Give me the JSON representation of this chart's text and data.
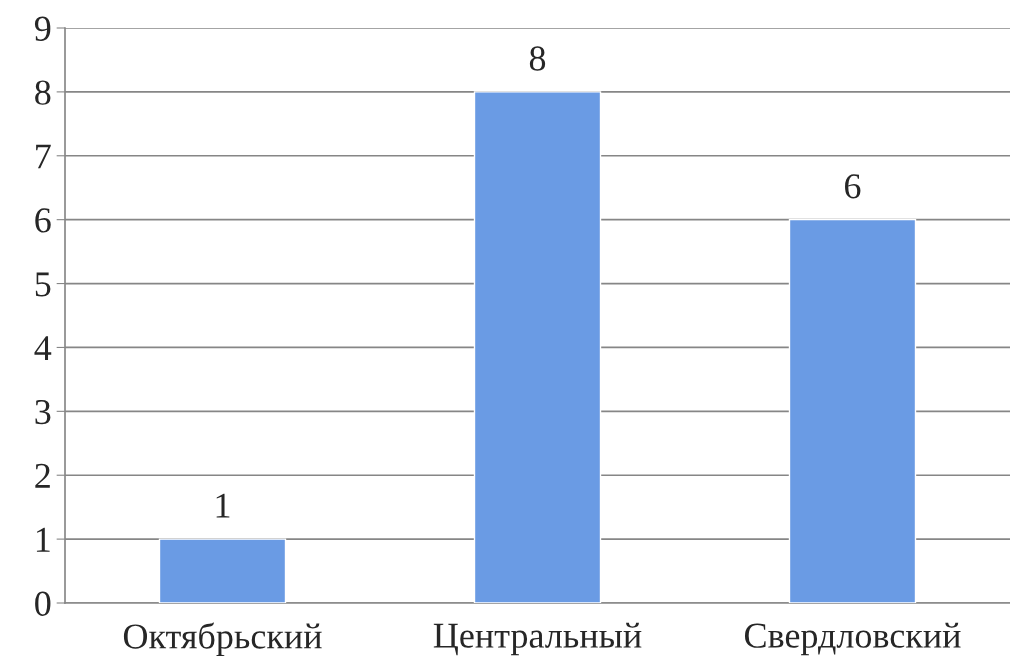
{
  "chart_data": {
    "type": "bar",
    "categories": [
      "Октябрьский",
      "Центральный",
      "Свердловский"
    ],
    "values": [
      1,
      8,
      6
    ],
    "color": "#6a9be4",
    "ylim": [
      0,
      9
    ],
    "yticks": [
      0,
      1,
      2,
      3,
      4,
      5,
      6,
      7,
      8,
      9
    ],
    "grid": "y",
    "data_labels": true
  }
}
